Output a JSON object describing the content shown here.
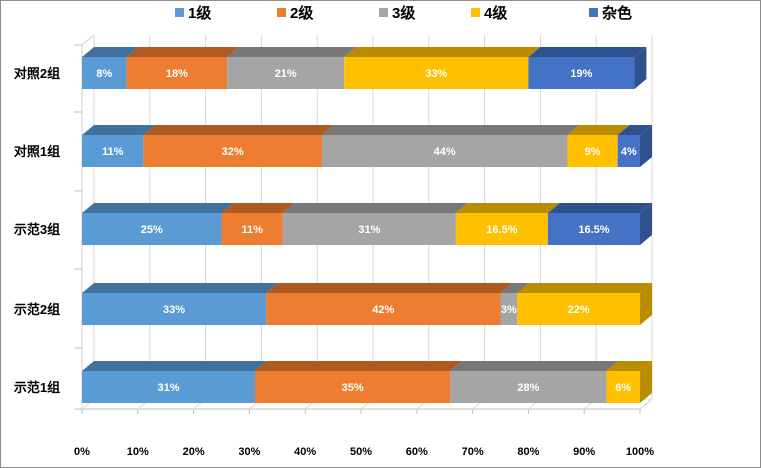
{
  "chart_data": {
    "type": "bar",
    "orientation": "horizontal",
    "stacked": "percent",
    "style": "3d",
    "categories": [
      "对照2组",
      "对照1组",
      "示范3组",
      "示范2组",
      "示范1组"
    ],
    "series": [
      {
        "name": "1级",
        "color": "#5b9bd5",
        "side_color": "#41719c",
        "values": [
          8,
          11,
          25,
          33,
          31
        ],
        "labels": [
          "8%",
          "11%",
          "25%",
          "33%",
          "31%"
        ]
      },
      {
        "name": "2级",
        "color": "#ed7d31",
        "side_color": "#ae5a21",
        "values": [
          18,
          32,
          11,
          42,
          35
        ],
        "labels": [
          "18%",
          "32%",
          "11%",
          "42%",
          "35%"
        ]
      },
      {
        "name": "3级",
        "color": "#a5a5a5",
        "side_color": "#787878",
        "values": [
          21,
          44,
          31,
          3,
          28
        ],
        "labels": [
          "21%",
          "44%",
          "31%",
          "3%",
          "28%"
        ]
      },
      {
        "name": "4级",
        "color": "#ffc000",
        "side_color": "#bc8c00",
        "values": [
          33,
          9,
          16.5,
          22,
          6
        ],
        "labels": [
          "33%",
          "9%",
          "16.5%",
          "22%",
          "6%"
        ]
      },
      {
        "name": "杂色",
        "color": "#4472c4",
        "side_color": "#2f528f",
        "values": [
          19,
          4,
          16.5,
          0,
          0
        ],
        "labels": [
          "19%",
          "4%",
          "16.5%",
          "",
          ""
        ]
      }
    ],
    "x_ticks": [
      "0%",
      "10%",
      "20%",
      "30%",
      "40%",
      "50%",
      "60%",
      "70%",
      "80%",
      "90%",
      "100%"
    ],
    "xlim": [
      0,
      100
    ],
    "legend": "top",
    "grid": true
  }
}
